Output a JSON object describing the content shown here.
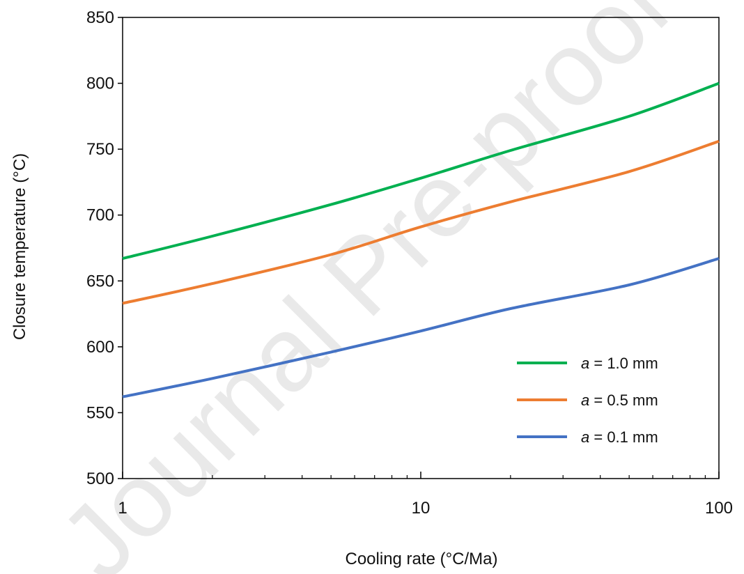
{
  "watermark": "Journal Pre-proof",
  "chart_data": {
    "type": "line",
    "title": "",
    "xlabel": "Cooling rate (°C/Ma)",
    "ylabel": "Closure temperature (°C)",
    "xscale": "log",
    "xlim": [
      1,
      100
    ],
    "ylim": [
      500,
      850
    ],
    "xticks": [
      1,
      10,
      100
    ],
    "xtick_labels": [
      "1",
      "10",
      "100"
    ],
    "yticks": [
      500,
      550,
      600,
      650,
      700,
      750,
      800,
      850
    ],
    "ytick_labels": [
      "500",
      "550",
      "600",
      "650",
      "700",
      "750",
      "800",
      "850"
    ],
    "grid": false,
    "legend_position": "bottom-right",
    "x": [
      1,
      2,
      5,
      10,
      20,
      50,
      100
    ],
    "series": [
      {
        "name": "a = 1.0 mm",
        "legend_italic": "a",
        "legend_rest": " = 1.0 mm",
        "color": "#00b050",
        "values": [
          667,
          684,
          708,
          728,
          749,
          775,
          800
        ]
      },
      {
        "name": "a = 0.5 mm",
        "legend_italic": "a",
        "legend_rest": " = 0.5 mm",
        "color": "#ed7d31",
        "values": [
          633,
          648,
          670,
          691,
          710,
          733,
          756
        ]
      },
      {
        "name": "a = 0.1 mm",
        "legend_italic": "a",
        "legend_rest": " = 0.1 mm",
        "color": "#4472c4",
        "values": [
          562,
          576,
          596,
          612,
          629,
          647,
          667
        ]
      }
    ]
  }
}
